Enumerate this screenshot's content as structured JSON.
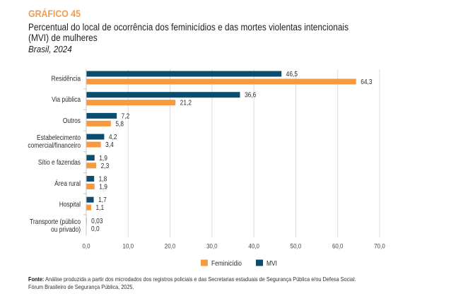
{
  "header": {
    "figure_label": "GRÁFICO 45",
    "title_lines": [
      "Percentual do local de ocorrência dos feminicídios e das mortes violentas intencionais",
      "(MVI) de mulheres"
    ],
    "subtitle": "Brasil, 2024"
  },
  "chart_data": {
    "type": "bar",
    "orientation": "horizontal",
    "title": "Percentual do local de ocorrência dos feminicídios e das mortes violentas intencionais (MVI) de mulheres",
    "subtitle": "Brasil, 2024",
    "xlabel": "",
    "ylabel": "",
    "xlim": [
      0,
      70
    ],
    "grid": "vertical",
    "categories": [
      "Residência",
      "Via pública",
      "Outros",
      "Estabelecimento comercial/financeiro",
      "Sítio e fazendas",
      "Área rural",
      "Hospital",
      "Transporte (público ou privado)"
    ],
    "category_label_lines": [
      [
        "Residência"
      ],
      [
        "Via pública"
      ],
      [
        "Outros"
      ],
      [
        "Estabelecimento",
        "comercial/financeiro"
      ],
      [
        "Sítio e fazendas"
      ],
      [
        "Área rural"
      ],
      [
        "Hospital"
      ],
      [
        "Transporte (público",
        "ou privado)"
      ]
    ],
    "series": [
      {
        "name": "MVI",
        "color": "#0b4d6e",
        "values": [
          46.5,
          36.6,
          7.2,
          4.2,
          1.9,
          1.8,
          1.7,
          0.03
        ],
        "labels": [
          "46,5",
          "36,6",
          "7,2",
          "4,2",
          "1,9",
          "1,8",
          "1,7",
          "0,03"
        ]
      },
      {
        "name": "Feminicídio",
        "color": "#f7993f",
        "values": [
          64.3,
          21.2,
          5.8,
          3.4,
          2.3,
          1.9,
          1.1,
          0.0
        ],
        "labels": [
          "64,3",
          "21,2",
          "5,8",
          "3,4",
          "2,3",
          "1,9",
          "1,1",
          "0,0"
        ]
      }
    ],
    "x_tick_values": [
      0,
      10,
      20,
      30,
      40,
      50,
      60,
      70
    ],
    "x_tick_labels": [
      "0,0",
      "10,0",
      "20,0",
      "30,0",
      "40,0",
      "50,0",
      "60,0",
      "70,0"
    ],
    "legend": {
      "position": "bottom",
      "entries": [
        {
          "name": "Feminicídio",
          "color": "#f7993f"
        },
        {
          "name": "MVI",
          "color": "#0b4d6e"
        }
      ]
    }
  },
  "footnote": {
    "source_label": "Fonte:",
    "source_text": " Análise produzida a partir dos microdados dos registros policiais e das Secretarias estaduais de Segurança Pública e/ou Defesa Social.",
    "credit": "Fórum Brasileiro de Segurança Pública, 2025."
  }
}
